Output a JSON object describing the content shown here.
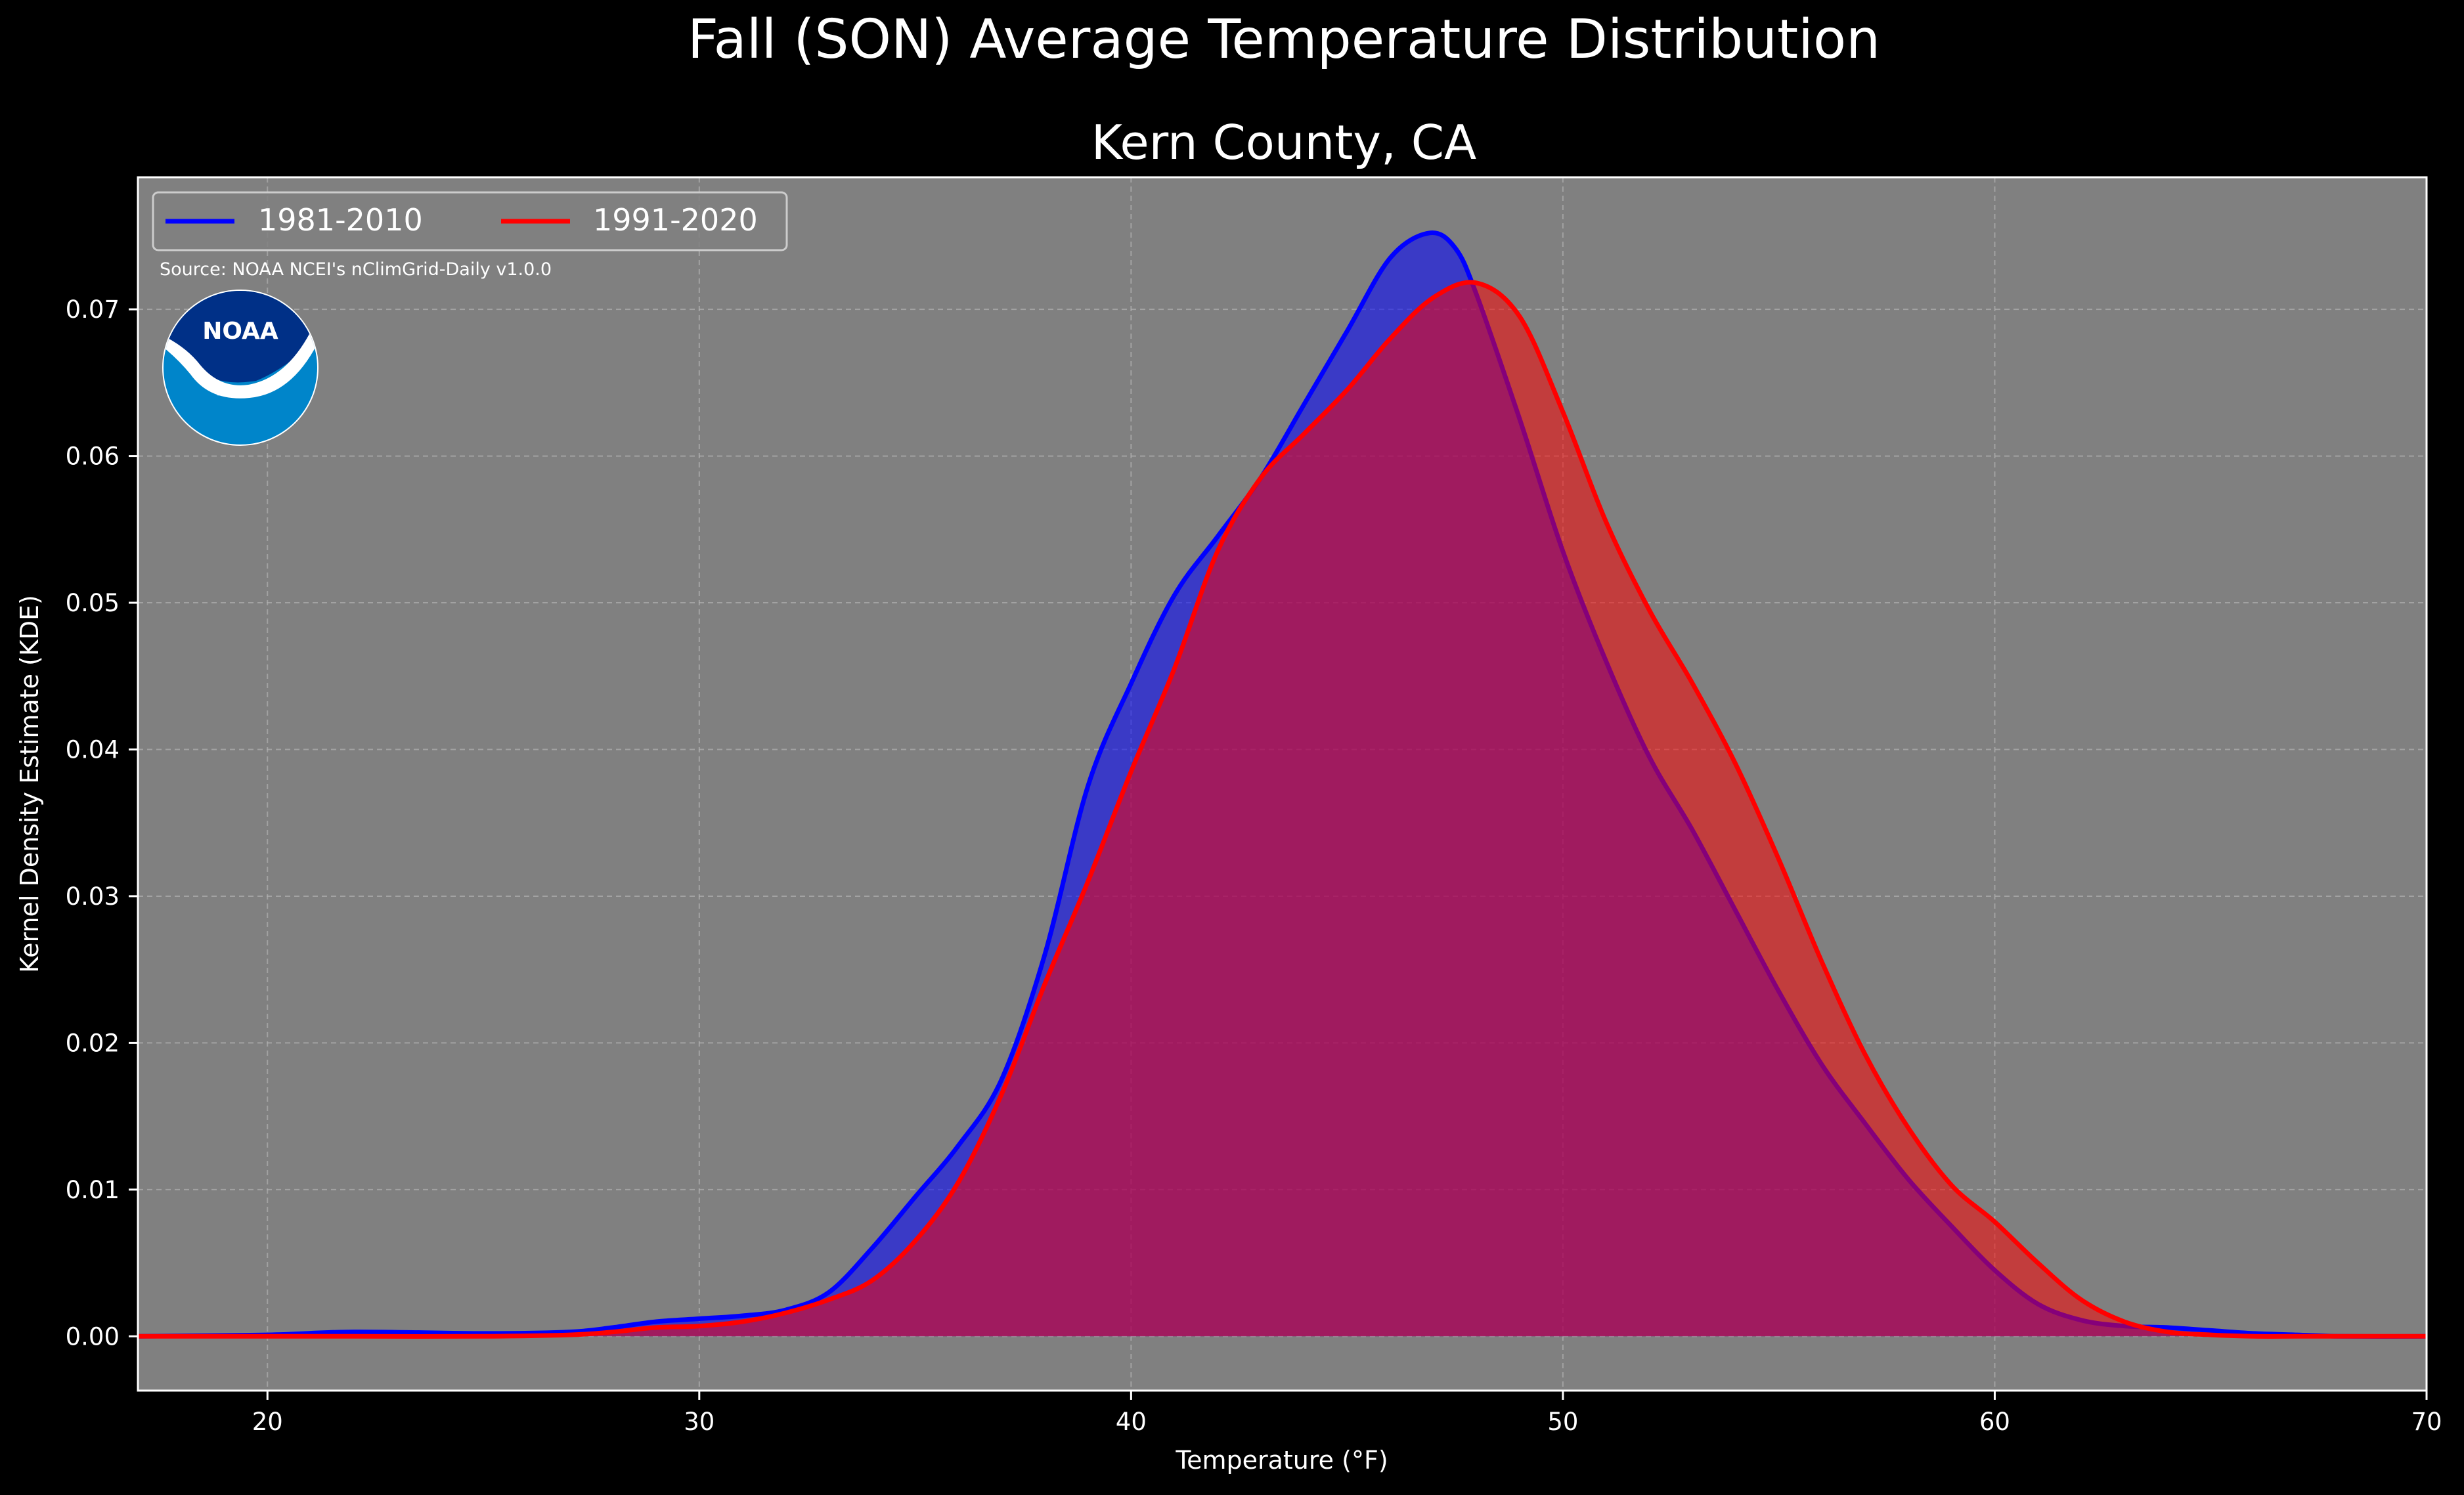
{
  "figure": {
    "suptitle": "Fall (SON) Average Temperature Distribution",
    "title": "Kern County, CA",
    "source": "Source: NOAA NCEI's nClimGrid-Daily v1.0.0",
    "logo_text": "NOAA"
  },
  "colors": {
    "background": "#000000",
    "plot_bg": "#808080",
    "series_1981": "#0000ff",
    "series_1991": "#ff0000",
    "grid": "#b0b0b0"
  },
  "chart_data": {
    "type": "area",
    "title": "Kern County, CA",
    "xlabel": "Temperature (°F)",
    "ylabel": "Kernel Density Estimate (KDE)",
    "xlim": [
      17,
      70
    ],
    "ylim": [
      -0.0037,
      0.079
    ],
    "xticks": [
      20,
      30,
      40,
      50,
      60,
      70
    ],
    "yticks": [
      "0.00",
      "0.01",
      "0.02",
      "0.03",
      "0.04",
      "0.05",
      "0.06",
      "0.07"
    ],
    "grid": true,
    "legend": {
      "placement": "top-left",
      "ncol": 2
    },
    "series": [
      {
        "name": "1981-2010",
        "color": "#0000ff",
        "x": [
          17,
          20,
          22,
          25,
          27,
          28,
          29,
          30,
          31,
          32,
          33,
          34,
          35,
          36,
          37,
          38,
          39,
          40,
          41,
          42,
          43,
          44,
          45,
          46,
          46.9,
          47.5,
          48,
          49,
          50,
          51,
          52,
          53,
          54,
          55,
          56,
          57,
          58,
          59,
          60,
          61,
          62,
          63,
          64,
          65,
          66,
          67,
          68,
          70
        ],
        "y": [
          0,
          0.0001,
          0.0003,
          0.0002,
          0.0003,
          0.0006,
          0.001,
          0.0012,
          0.0014,
          0.0018,
          0.003,
          0.006,
          0.0095,
          0.013,
          0.0175,
          0.026,
          0.0375,
          0.0445,
          0.0505,
          0.0545,
          0.0585,
          0.0635,
          0.0685,
          0.0735,
          0.0752,
          0.0742,
          0.071,
          0.0625,
          0.0535,
          0.046,
          0.0395,
          0.0345,
          0.029,
          0.0235,
          0.0185,
          0.0145,
          0.0107,
          0.0075,
          0.0045,
          0.0022,
          0.0011,
          0.0007,
          0.0006,
          0.0004,
          0.0002,
          0.0001,
          0,
          0
        ]
      },
      {
        "name": "1991-2020",
        "color": "#ff0000",
        "x": [
          17,
          20,
          22,
          25,
          27,
          28,
          29,
          30,
          31,
          32,
          33,
          34,
          35,
          36,
          37,
          38,
          39,
          40,
          41,
          42,
          43,
          44,
          45,
          46,
          47,
          48,
          49,
          50,
          51,
          52,
          53,
          54,
          55,
          56,
          57,
          58,
          59,
          60,
          61,
          62,
          63,
          64,
          65,
          66,
          67,
          68,
          70
        ],
        "y": [
          0,
          0,
          0,
          0,
          0.0001,
          0.0003,
          0.0006,
          0.0007,
          0.001,
          0.0016,
          0.0025,
          0.0038,
          0.0065,
          0.0105,
          0.0165,
          0.024,
          0.031,
          0.0385,
          0.0455,
          0.0535,
          0.0585,
          0.0615,
          0.0645,
          0.068,
          0.0708,
          0.0718,
          0.0695,
          0.063,
          0.0555,
          0.0495,
          0.0445,
          0.039,
          0.0325,
          0.0255,
          0.0192,
          0.0142,
          0.0103,
          0.0078,
          0.005,
          0.0025,
          0.001,
          0.0003,
          0.0001,
          0,
          0,
          0,
          0
        ]
      }
    ]
  }
}
